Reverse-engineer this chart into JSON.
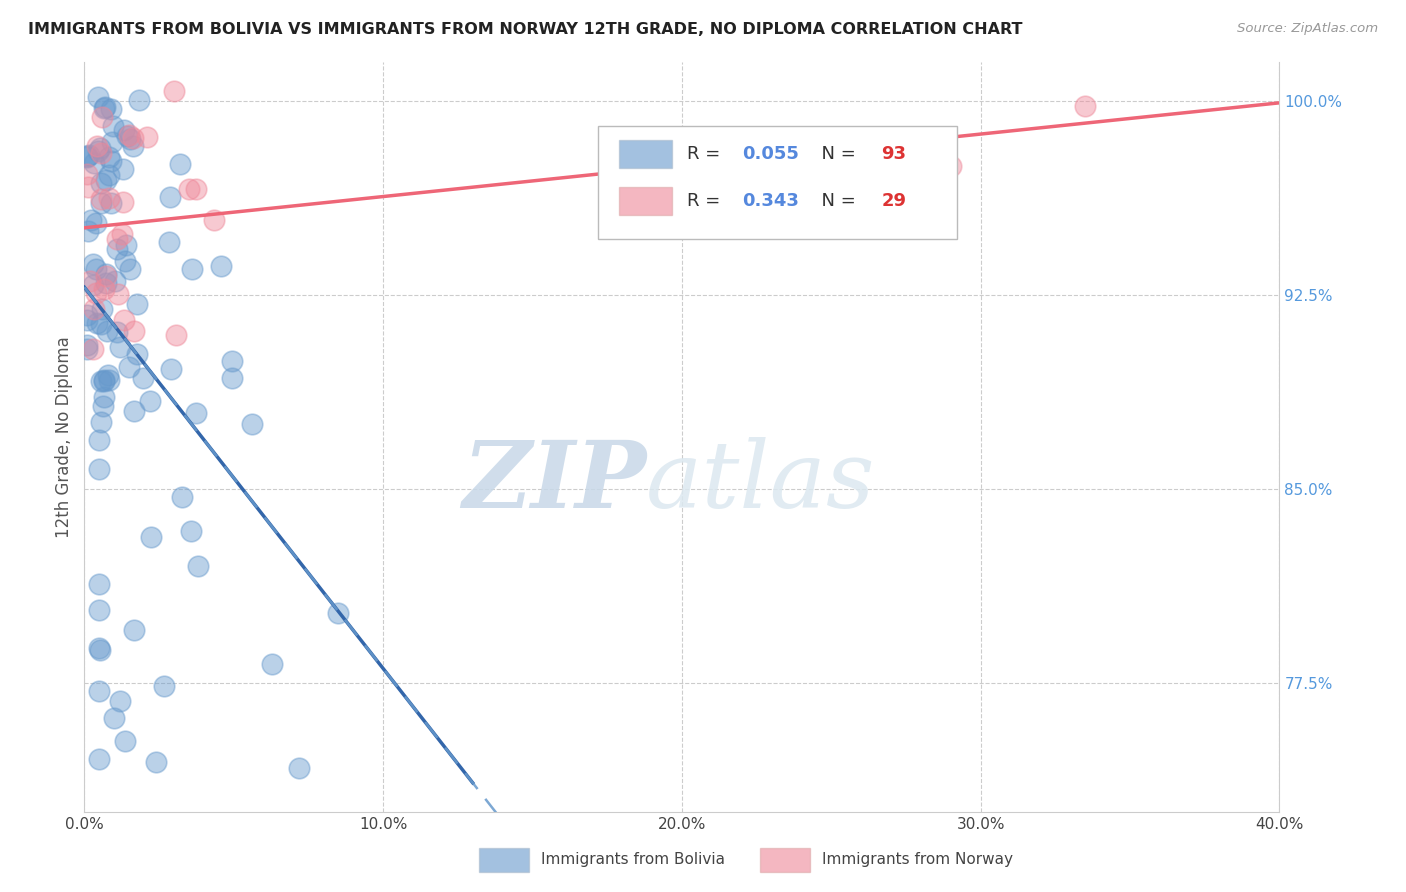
{
  "title": "IMMIGRANTS FROM BOLIVIA VS IMMIGRANTS FROM NORWAY 12TH GRADE, NO DIPLOMA CORRELATION CHART",
  "source_text": "Source: ZipAtlas.com",
  "ylabel": "12th Grade, No Diploma",
  "xlim": [
    0.0,
    0.4
  ],
  "ylim": [
    0.725,
    1.015
  ],
  "xtick_labels": [
    "0.0%",
    "10.0%",
    "20.0%",
    "30.0%",
    "40.0%"
  ],
  "xtick_values": [
    0.0,
    0.1,
    0.2,
    0.3,
    0.4
  ],
  "ytick_labels": [
    "77.5%",
    "85.0%",
    "92.5%",
    "100.0%"
  ],
  "ytick_values": [
    0.775,
    0.85,
    0.925,
    1.0
  ],
  "bolivia_color": "#6699cc",
  "norway_color": "#ee8899",
  "bolivia_R": 0.055,
  "bolivia_N": 93,
  "norway_R": 0.343,
  "norway_N": 29,
  "legend_label_bolivia": "Immigrants from Bolivia",
  "legend_label_norway": "Immigrants from Norway",
  "watermark_zip": "ZIP",
  "watermark_atlas": "atlas",
  "watermark_color": "#d0dff0",
  "background_color": "#ffffff",
  "grid_color": "#cccccc"
}
